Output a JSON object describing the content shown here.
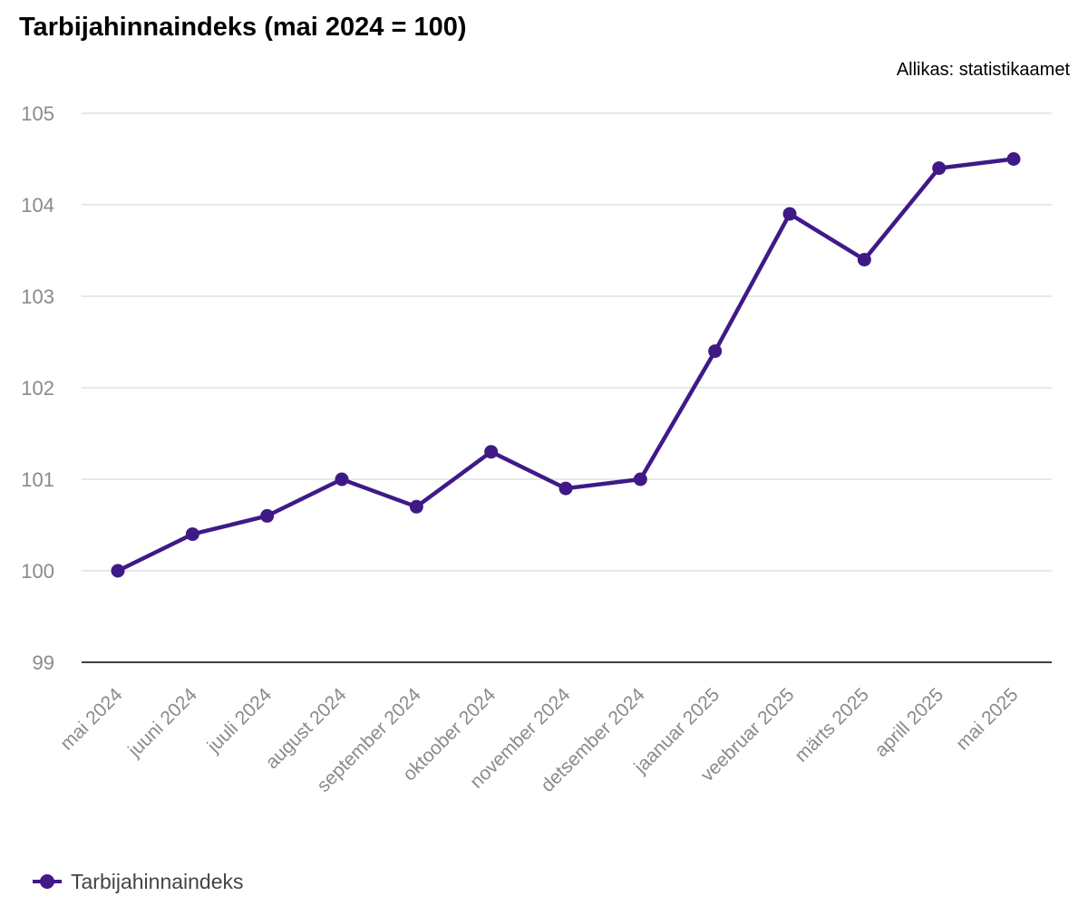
{
  "chart_data": {
    "type": "line",
    "title": "Tarbijahinnaindeks (mai 2024 = 100)",
    "source": "Allikas: statistikaamet",
    "xlabel": "",
    "ylabel": "",
    "ylim": [
      99,
      105
    ],
    "yticks": [
      "99",
      "100",
      "101",
      "102",
      "103",
      "104",
      "105"
    ],
    "grid": true,
    "legend_position": "bottom-left",
    "categories": [
      "mai 2024",
      "juuni 2024",
      "juuli 2024",
      "august 2024",
      "september 2024",
      "oktoober 2024",
      "november 2024",
      "detsember 2024",
      "jaanuar 2025",
      "veebruar 2025",
      "märts 2025",
      "aprill 2025",
      "mai 2025"
    ],
    "series": [
      {
        "name": "Tarbijahinnaindeks",
        "color": "#3f1a87",
        "values": [
          100.0,
          100.4,
          100.6,
          101.0,
          100.7,
          101.3,
          100.9,
          101.0,
          102.4,
          103.9,
          103.4,
          104.4,
          104.5
        ]
      }
    ]
  }
}
